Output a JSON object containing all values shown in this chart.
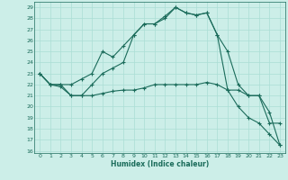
{
  "xlabel": "Humidex (Indice chaleur)",
  "xlim": [
    -0.5,
    23.5
  ],
  "ylim": [
    15.8,
    29.5
  ],
  "yticks": [
    16,
    17,
    18,
    19,
    20,
    21,
    22,
    23,
    24,
    25,
    26,
    27,
    28,
    29
  ],
  "xticks": [
    0,
    1,
    2,
    3,
    4,
    5,
    6,
    7,
    8,
    9,
    10,
    11,
    12,
    13,
    14,
    15,
    16,
    17,
    18,
    19,
    20,
    21,
    22,
    23
  ],
  "bg_color": "#cceee8",
  "grid_color": "#aaddd5",
  "line_color": "#1a6b5a",
  "line1_x": [
    0,
    1,
    2,
    3,
    4,
    5,
    6,
    7,
    8,
    9,
    10,
    11,
    12,
    13,
    14,
    15,
    16,
    17,
    18,
    19,
    20,
    21,
    22,
    23
  ],
  "line1_y": [
    23.0,
    22.0,
    22.0,
    22.0,
    22.5,
    23.0,
    25.0,
    24.5,
    25.5,
    26.5,
    27.5,
    27.5,
    28.2,
    29.0,
    28.5,
    28.3,
    28.5,
    26.5,
    25.0,
    22.0,
    21.0,
    21.0,
    18.5,
    18.5
  ],
  "line2_x": [
    0,
    1,
    2,
    3,
    4,
    5,
    6,
    7,
    8,
    9,
    10,
    11,
    12,
    13,
    14,
    15,
    16,
    17,
    18,
    19,
    20,
    21,
    22,
    23
  ],
  "line2_y": [
    23.0,
    22.0,
    22.0,
    21.0,
    21.0,
    22.0,
    23.0,
    23.5,
    24.0,
    26.5,
    27.5,
    27.5,
    28.0,
    29.0,
    28.5,
    28.3,
    28.5,
    26.5,
    21.5,
    21.5,
    21.0,
    21.0,
    19.5,
    16.5
  ],
  "line3_x": [
    0,
    1,
    2,
    3,
    4,
    5,
    6,
    7,
    8,
    9,
    10,
    11,
    12,
    13,
    14,
    15,
    16,
    17,
    18,
    19,
    20,
    21,
    22,
    23
  ],
  "line3_y": [
    23.0,
    22.0,
    21.8,
    21.0,
    21.0,
    21.0,
    21.2,
    21.4,
    21.5,
    21.5,
    21.7,
    22.0,
    22.0,
    22.0,
    22.0,
    22.0,
    22.2,
    22.0,
    21.5,
    20.0,
    19.0,
    18.5,
    17.5,
    16.5
  ]
}
